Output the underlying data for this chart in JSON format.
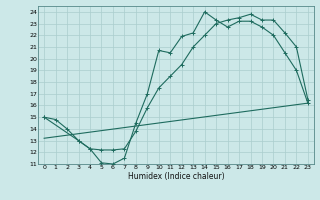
{
  "title": "",
  "xlabel": "Humidex (Indice chaleur)",
  "bg_color": "#cce8e8",
  "line_color": "#1e6b5e",
  "grid_color": "#aacece",
  "xlim": [
    -0.5,
    23.5
  ],
  "ylim": [
    11,
    24.5
  ],
  "xticks": [
    0,
    1,
    2,
    3,
    4,
    5,
    6,
    7,
    8,
    9,
    10,
    11,
    12,
    13,
    14,
    15,
    16,
    17,
    18,
    19,
    20,
    21,
    22,
    23
  ],
  "yticks": [
    11,
    12,
    13,
    14,
    15,
    16,
    17,
    18,
    19,
    20,
    21,
    22,
    23,
    24
  ],
  "line1_x": [
    0,
    1,
    2,
    3,
    4,
    5,
    6,
    7,
    8,
    9,
    10,
    11,
    12,
    13,
    14,
    15,
    16,
    17,
    18,
    19,
    20,
    21,
    22,
    23
  ],
  "line1_y": [
    15,
    14.8,
    14.0,
    13.0,
    12.3,
    11.1,
    11.0,
    11.5,
    14.5,
    17.0,
    20.7,
    20.5,
    21.9,
    22.2,
    24.0,
    23.3,
    22.7,
    23.2,
    23.2,
    22.7,
    22.0,
    20.5,
    19.0,
    16.2
  ],
  "line2_x": [
    0,
    3,
    4,
    5,
    6,
    7,
    8,
    9,
    10,
    11,
    12,
    13,
    14,
    15,
    16,
    17,
    18,
    19,
    20,
    21,
    22,
    23
  ],
  "line2_y": [
    15,
    13.0,
    12.3,
    12.2,
    12.2,
    12.3,
    13.8,
    15.8,
    17.5,
    18.5,
    19.5,
    21.0,
    22.0,
    23.0,
    23.3,
    23.5,
    23.8,
    23.3,
    23.3,
    22.2,
    21.0,
    16.5
  ],
  "line3_x": [
    0,
    23
  ],
  "line3_y": [
    13.2,
    16.2
  ]
}
